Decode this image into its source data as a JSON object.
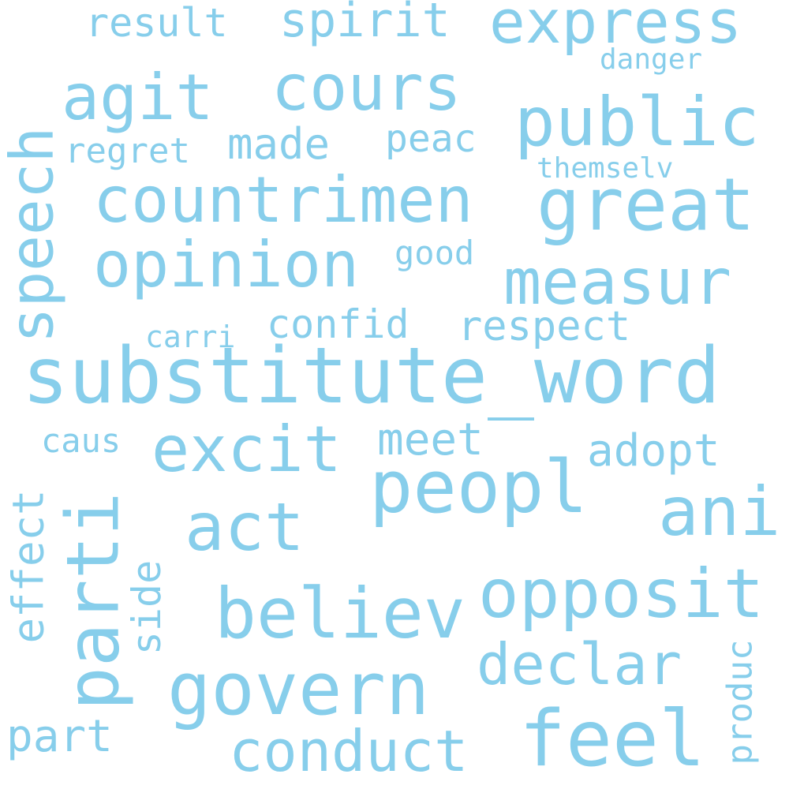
{
  "word_color": "#87ceeb",
  "background": "#ffffff",
  "words": {
    "substitute_word": "substitute_word",
    "peopl": "peopl",
    "countrimen": "countrimen",
    "opinion": "opinion",
    "great": "great",
    "govern": "govern",
    "parti": "parti",
    "speech": "speech",
    "public": "public",
    "measur": "measur",
    "cours": "cours",
    "agit": "agit",
    "express": "express",
    "believ": "believ",
    "opposit": "opposit",
    "excit": "excit",
    "act": "act",
    "ani": "ani",
    "feel": "feel",
    "conduct": "conduct",
    "declar": "declar",
    "spirit": "spirit",
    "result": "result",
    "made": "made",
    "regret": "regret",
    "confid": "confid",
    "respect": "respect",
    "meet": "meet",
    "adopt": "adopt",
    "effect": "effect",
    "side": "side",
    "produc": "produc",
    "part": "part",
    "caus": "caus",
    "carri": "carri",
    "peac": "peac",
    "good": "good",
    "danger": "danger",
    "themselv": "themselv"
  }
}
